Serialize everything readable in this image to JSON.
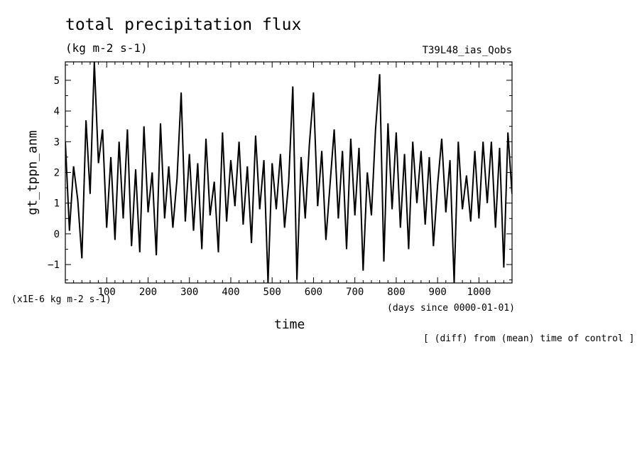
{
  "chart_data": {
    "type": "line",
    "title": "total precipitation flux",
    "units": "(kg m-2 s-1)",
    "run_name": "T39L48_ias_Qobs",
    "xlabel": "time",
    "x_units": "(days since 0000-01-01)",
    "ylabel": "gt_tppn_anm",
    "y_scale_note": "(x1E-6 kg m-2 s-1)",
    "note": "[ (diff) from (mean) time of control ]",
    "xlim": [
      0,
      1080
    ],
    "ylim": [
      -1.6,
      5.6
    ],
    "x_ticks": [
      100,
      200,
      300,
      400,
      500,
      600,
      700,
      800,
      900,
      1000
    ],
    "y_ticks": [
      -1,
      0,
      1,
      2,
      3,
      4,
      5
    ],
    "x": [
      0,
      10,
      20,
      30,
      40,
      50,
      60,
      70,
      80,
      90,
      100,
      110,
      120,
      130,
      140,
      150,
      160,
      170,
      180,
      190,
      200,
      210,
      220,
      230,
      240,
      250,
      260,
      270,
      280,
      290,
      300,
      310,
      320,
      330,
      340,
      350,
      360,
      370,
      380,
      390,
      400,
      410,
      420,
      430,
      440,
      450,
      460,
      470,
      480,
      490,
      500,
      510,
      520,
      530,
      540,
      550,
      560,
      570,
      580,
      590,
      600,
      610,
      620,
      630,
      640,
      650,
      660,
      670,
      680,
      690,
      700,
      710,
      720,
      730,
      740,
      750,
      760,
      770,
      780,
      790,
      800,
      810,
      820,
      830,
      840,
      850,
      860,
      870,
      880,
      890,
      900,
      910,
      920,
      930,
      940,
      950,
      960,
      970,
      980,
      990,
      1000,
      1010,
      1020,
      1030,
      1040,
      1050,
      1060,
      1070,
      1080
    ],
    "series": [
      {
        "color": "#000000",
        "values": [
          3.0,
          0.1,
          2.2,
          1.1,
          -0.8,
          3.7,
          1.3,
          5.6,
          2.3,
          3.4,
          0.2,
          2.5,
          -0.2,
          3.0,
          0.5,
          3.4,
          -0.4,
          2.1,
          -0.6,
          3.5,
          0.7,
          2.0,
          -0.7,
          3.6,
          0.5,
          2.2,
          0.2,
          1.8,
          4.6,
          0.4,
          2.6,
          0.1,
          2.3,
          -0.5,
          3.1,
          0.6,
          1.7,
          -0.6,
          3.3,
          0.4,
          2.4,
          0.9,
          3.0,
          0.3,
          2.2,
          -0.3,
          3.2,
          0.8,
          2.4,
          -1.6,
          2.3,
          0.8,
          2.6,
          0.2,
          1.7,
          4.8,
          -1.5,
          2.5,
          0.5,
          2.9,
          4.6,
          0.9,
          2.7,
          -0.2,
          1.6,
          3.4,
          0.5,
          2.7,
          -0.5,
          3.1,
          0.6,
          2.8,
          -1.2,
          2.0,
          0.6,
          3.4,
          5.2,
          -0.9,
          3.6,
          0.8,
          3.3,
          0.2,
          2.6,
          -0.5,
          3.0,
          1.0,
          2.7,
          0.3,
          2.5,
          -0.4,
          1.6,
          3.1,
          0.7,
          2.4,
          -1.6,
          3.0,
          0.8,
          1.9,
          0.4,
          2.7,
          0.5,
          3.0,
          1.0,
          3.0,
          0.2,
          2.8,
          -1.1,
          3.3,
          1.3
        ]
      }
    ]
  }
}
